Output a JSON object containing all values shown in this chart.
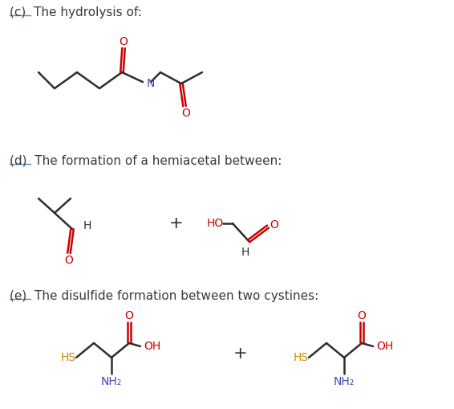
{
  "bg_color": "#ffffff",
  "bond_color": "#2d2d2d",
  "oxygen_color": "#cc0000",
  "nitrogen_color": "#4444bb",
  "sulfur_color": "#cc8800",
  "label_color": "#3a3a3a",
  "section_c_label": "(c)  The hydrolysis of:",
  "section_d_label": "(d)  The formation of a hemiacetal between:",
  "section_e_label": "(e)  The disulfide formation between two cystines:",
  "figsize": [
    5.66,
    5.09
  ],
  "dpi": 100
}
